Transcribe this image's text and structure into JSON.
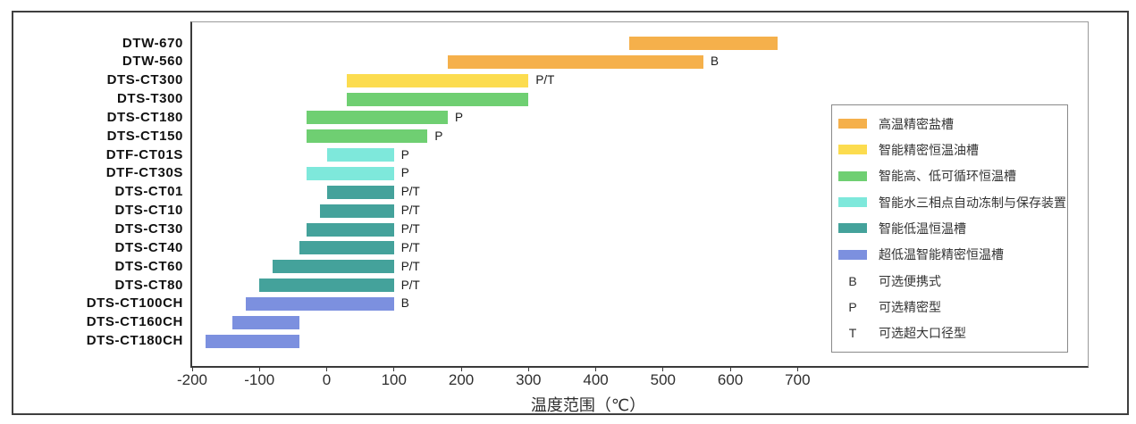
{
  "chart_data": {
    "type": "bar",
    "orientation": "horizontal-range",
    "xlabel": "温度范围（℃）",
    "x_ticks": [
      -200,
      -100,
      0,
      100,
      200,
      300,
      400,
      500,
      600,
      700
    ],
    "xlim": [
      -200,
      1130
    ],
    "grid": false,
    "legend_position": "right",
    "rows": [
      {
        "model": "DTW-670",
        "start": 450,
        "end": 670,
        "group": "salt",
        "tag": ""
      },
      {
        "model": "DTW-560",
        "start": 180,
        "end": 560,
        "group": "salt",
        "tag": "B"
      },
      {
        "model": "DTS-CT300",
        "start": 30,
        "end": 300,
        "group": "oil",
        "tag": "P/T"
      },
      {
        "model": "DTS-T300",
        "start": 30,
        "end": 300,
        "group": "cycle",
        "tag": ""
      },
      {
        "model": "DTS-CT180",
        "start": -30,
        "end": 180,
        "group": "cycle",
        "tag": "P"
      },
      {
        "model": "DTS-CT150",
        "start": -30,
        "end": 150,
        "group": "cycle",
        "tag": "P"
      },
      {
        "model": "DTF-CT01S",
        "start": 0,
        "end": 100,
        "group": "triple",
        "tag": "P"
      },
      {
        "model": "DTF-CT30S",
        "start": -30,
        "end": 100,
        "group": "triple",
        "tag": "P"
      },
      {
        "model": "DTS-CT01",
        "start": 0,
        "end": 100,
        "group": "low",
        "tag": "P/T"
      },
      {
        "model": "DTS-CT10",
        "start": -10,
        "end": 100,
        "group": "low",
        "tag": "P/T"
      },
      {
        "model": "DTS-CT30",
        "start": -30,
        "end": 100,
        "group": "low",
        "tag": "P/T"
      },
      {
        "model": "DTS-CT40",
        "start": -40,
        "end": 100,
        "group": "low",
        "tag": "P/T"
      },
      {
        "model": "DTS-CT60",
        "start": -80,
        "end": 100,
        "group": "low",
        "tag": "P/T"
      },
      {
        "model": "DTS-CT80",
        "start": -100,
        "end": 100,
        "group": "low",
        "tag": "P/T"
      },
      {
        "model": "DTS-CT100CH",
        "start": -120,
        "end": 100,
        "group": "ultra",
        "tag": "B"
      },
      {
        "model": "DTS-CT160CH",
        "start": -140,
        "end": -40,
        "group": "ultra",
        "tag": ""
      },
      {
        "model": "DTS-CT180CH",
        "start": -180,
        "end": -40,
        "group": "ultra",
        "tag": ""
      }
    ],
    "groups": {
      "salt": {
        "label": "高温精密盐槽",
        "color": "#F5B04B"
      },
      "oil": {
        "label": "智能精密恒温油槽",
        "color": "#FCDC4F"
      },
      "cycle": {
        "label": "智能高、低可循环恒温槽",
        "color": "#6FCF72"
      },
      "triple": {
        "label": "智能水三相点自动冻制与保存装置",
        "color": "#7EE8DB"
      },
      "low": {
        "label": "智能低温恒温槽",
        "color": "#44A29B"
      },
      "ultra": {
        "label": "超低温智能精密恒温槽",
        "color": "#7C90DF"
      }
    },
    "legend_letters": [
      {
        "letter": "B",
        "label": "可选便携式"
      },
      {
        "letter": "P",
        "label": "可选精密型"
      },
      {
        "letter": "T",
        "label": "可选超大口径型"
      }
    ]
  }
}
